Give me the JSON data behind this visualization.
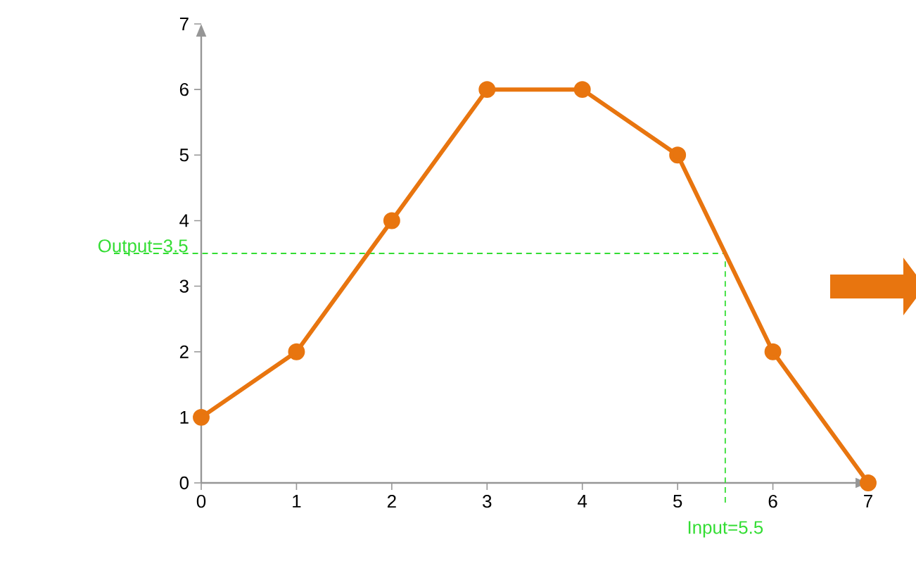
{
  "chart_data": {
    "type": "line",
    "x": [
      0,
      1,
      2,
      3,
      4,
      5,
      6,
      7
    ],
    "series": [
      {
        "color": "#e8750f",
        "values": [
          1,
          2,
          4,
          6,
          6,
          5,
          2,
          0
        ]
      }
    ],
    "xlim": [
      0,
      7
    ],
    "ylim": [
      0,
      7
    ],
    "xticks": [
      0,
      1,
      2,
      3,
      4,
      5,
      6,
      7
    ],
    "yticks": [
      0,
      1,
      2,
      3,
      4,
      5,
      6,
      7
    ],
    "marker": "circle",
    "line_style": "solid",
    "grid": false,
    "ref_lines": [
      {
        "axis": "y",
        "value": 3.5,
        "label": "Output=3.5",
        "color": "#33dd33",
        "line_style": "dashed"
      },
      {
        "axis": "x",
        "value": 5.5,
        "label": "Input=5.5",
        "color": "#33dd33",
        "line_style": "dashed"
      }
    ]
  }
}
